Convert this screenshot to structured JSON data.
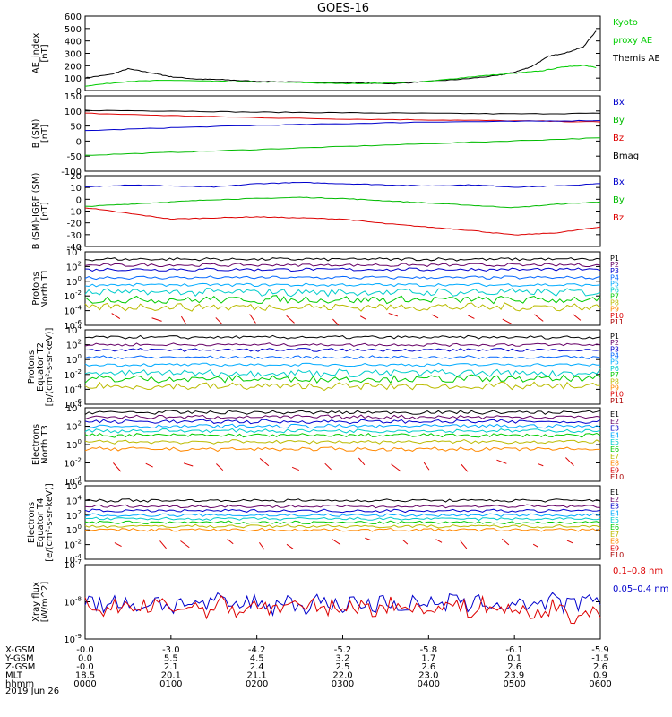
{
  "title": "GOES-16",
  "date_label": "2019 Jun 26",
  "footer": {
    "row_labels": [
      "X-GSM",
      "Y-GSM",
      "Z-GSM",
      "MLT",
      "hhmm"
    ],
    "columns": [
      [
        "-0.0",
        "0.0",
        "-0.0",
        "18.5",
        "0000"
      ],
      [
        "-3.0",
        "5.5",
        "2.1",
        "20.1",
        "0100"
      ],
      [
        "-4.2",
        "4.5",
        "2.4",
        "21.1",
        "0200"
      ],
      [
        "-5.2",
        "3.2",
        "2.5",
        "22.0",
        "0300"
      ],
      [
        "-5.8",
        "1.7",
        "2.6",
        "23.0",
        "0400"
      ],
      [
        "-6.1",
        "0.1",
        "2.6",
        "23.9",
        "0500"
      ],
      [
        "-5.9",
        "-1.5",
        "2.6",
        "0.9",
        "0600"
      ]
    ]
  },
  "panels": [
    {
      "ylabel": [
        "AE_index",
        "[nT]"
      ],
      "scale": "linear",
      "ticks": [
        "600",
        "500",
        "400",
        "300",
        "200",
        "100",
        "0"
      ],
      "legend": [
        {
          "text": "Kyoto",
          "color": "#00cc00"
        },
        {
          "text": "proxy AE",
          "color": "#00cc00"
        },
        {
          "text": "Themis AE",
          "color": "#000000"
        }
      ]
    },
    {
      "ylabel": [
        "B (SM)",
        "[nT]"
      ],
      "scale": "linear",
      "ticks": [
        "150",
        "100",
        "50",
        "0",
        "-50",
        "-100"
      ],
      "legend": [
        {
          "text": "Bx",
          "color": "#0000cc"
        },
        {
          "text": "By",
          "color": "#00bb00"
        },
        {
          "text": "Bz",
          "color": "#dd0000"
        },
        {
          "text": "Bmag",
          "color": "#000000"
        }
      ]
    },
    {
      "ylabel": [
        "B (SM)-IGRF (SM)",
        "[nT]"
      ],
      "scale": "linear",
      "ticks": [
        "20",
        "10",
        "0",
        "-10",
        "-20",
        "-30",
        "-40"
      ],
      "legend": [
        {
          "text": "Bx",
          "color": "#0000cc"
        },
        {
          "text": "By",
          "color": "#00bb00"
        },
        {
          "text": "Bz",
          "color": "#dd0000"
        }
      ]
    },
    {
      "ylabel": [
        "Protons",
        "North T1"
      ],
      "scale": "log",
      "ticks": [
        "4",
        "2",
        "0",
        "-2",
        "-4",
        "-6"
      ],
      "legend": [
        {
          "text": "P1",
          "color": "#000000"
        },
        {
          "text": "P2",
          "color": "#660066"
        },
        {
          "text": "P3",
          "color": "#0000cc"
        },
        {
          "text": "P4",
          "color": "#0066ff"
        },
        {
          "text": "P5",
          "color": "#00aaff"
        },
        {
          "text": "P6",
          "color": "#00cccc"
        },
        {
          "text": "P7",
          "color": "#00cc00"
        },
        {
          "text": "P8",
          "color": "#bbbb00"
        },
        {
          "text": "P9",
          "color": "#ff8800"
        },
        {
          "text": "P10",
          "color": "#dd0000"
        },
        {
          "text": "P11",
          "color": "#aa0000"
        }
      ]
    },
    {
      "ylabel": [
        "Protons",
        "Equator T2",
        "[p/(cm²-s-sr-keV)]"
      ],
      "scale": "log",
      "ticks": [
        "4",
        "2",
        "0",
        "-2",
        "-4",
        "-6"
      ],
      "legend": [
        {
          "text": "P1",
          "color": "#000000"
        },
        {
          "text": "P2",
          "color": "#660066"
        },
        {
          "text": "P3",
          "color": "#0000cc"
        },
        {
          "text": "P4",
          "color": "#0066ff"
        },
        {
          "text": "P5",
          "color": "#00aaff"
        },
        {
          "text": "P6",
          "color": "#00cccc"
        },
        {
          "text": "P7",
          "color": "#00cc00"
        },
        {
          "text": "P8",
          "color": "#bbbb00"
        },
        {
          "text": "P9",
          "color": "#ff8800"
        },
        {
          "text": "P10",
          "color": "#dd0000"
        },
        {
          "text": "P11",
          "color": "#aa0000"
        }
      ]
    },
    {
      "ylabel": [
        "Electrons",
        "North T3"
      ],
      "scale": "log",
      "ticks": [
        "4",
        "2",
        "0",
        "-2",
        "-4"
      ],
      "legend": [
        {
          "text": "E1",
          "color": "#000000"
        },
        {
          "text": "E2",
          "color": "#660066"
        },
        {
          "text": "E3",
          "color": "#0000cc"
        },
        {
          "text": "E4",
          "color": "#00aaff"
        },
        {
          "text": "E5",
          "color": "#00cccc"
        },
        {
          "text": "E6",
          "color": "#00cc00"
        },
        {
          "text": "E7",
          "color": "#bbbb00"
        },
        {
          "text": "E8",
          "color": "#ff8800"
        },
        {
          "text": "E9",
          "color": "#dd0000"
        },
        {
          "text": "E10",
          "color": "#aa0000"
        }
      ]
    },
    {
      "ylabel": [
        "Electrons",
        "Equator T4",
        "[e/(cm²-s-sr-keV)]"
      ],
      "scale": "log",
      "ticks": [
        "6",
        "4",
        "2",
        "0",
        "-2",
        "-4"
      ],
      "legend": [
        {
          "text": "E1",
          "color": "#000000"
        },
        {
          "text": "E2",
          "color": "#660066"
        },
        {
          "text": "E3",
          "color": "#0000cc"
        },
        {
          "text": "E4",
          "color": "#00aaff"
        },
        {
          "text": "E5",
          "color": "#00cccc"
        },
        {
          "text": "E6",
          "color": "#00cc00"
        },
        {
          "text": "E7",
          "color": "#bbbb00"
        },
        {
          "text": "E8",
          "color": "#ff8800"
        },
        {
          "text": "E9",
          "color": "#dd0000"
        },
        {
          "text": "E10",
          "color": "#aa0000"
        }
      ]
    },
    {
      "ylabel": [
        "Xray flux",
        "[W/m^2]"
      ],
      "scale": "log",
      "ticks": [
        "-7",
        "-8",
        "-9"
      ],
      "legend": [
        {
          "text": "0.1–0.8 nm",
          "color": "#dd0000"
        },
        {
          "text": "0.05–0.4 nm",
          "color": "#0000cc"
        }
      ]
    }
  ],
  "chart_data": {
    "type": "line",
    "title": "GOES-16",
    "x_unit": "hhmm",
    "x_ticks": [
      "0000",
      "0100",
      "0200",
      "0300",
      "0400",
      "0500",
      "0600"
    ],
    "xlim": [
      0,
      6
    ],
    "panels": [
      {
        "name": "AE_index",
        "ylim": [
          0,
          650
        ],
        "series": [
          {
            "name": "Themis AE",
            "color": "#000000",
            "x": [
              0,
              0.3,
              0.5,
              0.8,
              1.0,
              1.3,
              1.6,
              2.0,
              2.4,
              2.8,
              3.2,
              3.6,
              4.0,
              4.4,
              4.8,
              5.0,
              5.2,
              5.4,
              5.6,
              5.8,
              5.95
            ],
            "y": [
              110,
              140,
              190,
              150,
              120,
              100,
              95,
              80,
              75,
              70,
              65,
              60,
              80,
              100,
              130,
              160,
              210,
              300,
              330,
              380,
              520
            ]
          },
          {
            "name": "Kyoto proxy AE",
            "color": "#00cc00",
            "x": [
              0,
              0.5,
              1.0,
              1.5,
              2.0,
              2.5,
              3.0,
              3.5,
              4.0,
              4.5,
              5.0,
              5.3,
              5.6,
              5.8,
              5.95
            ],
            "y": [
              40,
              80,
              90,
              80,
              75,
              70,
              60,
              65,
              80,
              120,
              150,
              170,
              210,
              220,
              200
            ]
          }
        ]
      },
      {
        "name": "B (SM)",
        "ylim": [
          -110,
          150
        ],
        "series": [
          {
            "name": "Bmag",
            "color": "#000000",
            "x": [
              0,
              1,
              2,
              3,
              4,
              5,
              6
            ],
            "y": [
              100,
              98,
              94,
              92,
              90,
              88,
              90
            ]
          },
          {
            "name": "Bz",
            "color": "#dd0000",
            "x": [
              0,
              1,
              2,
              3,
              4,
              5,
              6
            ],
            "y": [
              90,
              82,
              75,
              70,
              67,
              64,
              60
            ]
          },
          {
            "name": "Bx",
            "color": "#0000cc",
            "x": [
              0,
              1,
              2,
              3,
              4,
              5,
              6
            ],
            "y": [
              30,
              40,
              48,
              54,
              60,
              62,
              65
            ]
          },
          {
            "name": "By",
            "color": "#00bb00",
            "x": [
              0,
              1,
              2,
              3,
              4,
              5,
              6
            ],
            "y": [
              -55,
              -45,
              -35,
              -25,
              -15,
              -5,
              5
            ]
          }
        ]
      },
      {
        "name": "B (SM)-IGRF (SM)",
        "ylim": [
          -42,
          20
        ],
        "series": [
          {
            "name": "Bx",
            "color": "#0000cc",
            "x": [
              0,
              0.5,
              1,
              1.5,
              2,
              2.5,
              3,
              3.5,
              4,
              4.5,
              5,
              5.5,
              6
            ],
            "y": [
              10,
              12,
              11,
              10,
              13,
              14,
              13,
              12,
              11,
              12,
              10,
              11,
              13
            ]
          },
          {
            "name": "By",
            "color": "#00bb00",
            "x": [
              0,
              0.5,
              1,
              1.5,
              2,
              2.5,
              3,
              3.5,
              4,
              4.5,
              5,
              5.5,
              6
            ],
            "y": [
              -7,
              -5,
              -3,
              -1,
              0,
              1,
              0,
              -2,
              -4,
              -6,
              -8,
              -5,
              -3
            ]
          },
          {
            "name": "Bz",
            "color": "#dd0000",
            "x": [
              0,
              0.5,
              1,
              1.5,
              2,
              2.5,
              3,
              3.5,
              4,
              4.5,
              5,
              5.5,
              6
            ],
            "y": [
              -8,
              -13,
              -18,
              -17,
              -16,
              -17,
              -18,
              -22,
              -25,
              -28,
              -32,
              -30,
              -25
            ]
          }
        ]
      },
      {
        "name": "Protons North T1",
        "log": true,
        "ylim_exp": [
          -6,
          4
        ],
        "series": [
          {
            "name": "P1",
            "color": "#000000",
            "y": 3.0
          },
          {
            "name": "P2",
            "color": "#660066",
            "y": 2.2
          },
          {
            "name": "P3",
            "color": "#0000cc",
            "y": 1.6
          },
          {
            "name": "P4",
            "color": "#0066ff",
            "y": 0.5
          },
          {
            "name": "P5",
            "color": "#00aaff",
            "y": -0.5
          },
          {
            "name": "P6",
            "color": "#00cccc",
            "y": -1.5
          },
          {
            "name": "P7",
            "color": "#00cc00",
            "y": -2.5
          },
          {
            "name": "P8",
            "color": "#bbbb00",
            "y": -3.5
          },
          {
            "name": "P10",
            "color": "#dd0000",
            "y": -4.8
          }
        ]
      },
      {
        "name": "Protons Equator T2",
        "log": true,
        "ylim_exp": [
          -6,
          4
        ],
        "series": [
          {
            "name": "P1",
            "color": "#000000",
            "y": 3.0
          },
          {
            "name": "P2",
            "color": "#660066",
            "y": 2.0
          },
          {
            "name": "P3",
            "color": "#0000cc",
            "y": 1.3
          },
          {
            "name": "P4",
            "color": "#0066ff",
            "y": 0.3
          },
          {
            "name": "P5",
            "color": "#00aaff",
            "y": -0.7
          },
          {
            "name": "P6",
            "color": "#00cccc",
            "y": -1.8
          },
          {
            "name": "P7",
            "color": "#00cc00",
            "y": -2.6
          },
          {
            "name": "P8",
            "color": "#bbbb00",
            "y": -3.6
          }
        ]
      },
      {
        "name": "Electrons North T3",
        "log": true,
        "ylim_exp": [
          -4,
          4
        ],
        "series": [
          {
            "name": "E1",
            "color": "#000000",
            "y": 3.5
          },
          {
            "name": "E2",
            "color": "#660066",
            "y": 3.0
          },
          {
            "name": "E3",
            "color": "#0000cc",
            "y": 2.5
          },
          {
            "name": "E4",
            "color": "#00aaff",
            "y": 2.0
          },
          {
            "name": "E5",
            "color": "#00cccc",
            "y": 1.5
          },
          {
            "name": "E6",
            "color": "#00cc00",
            "y": 1.0
          },
          {
            "name": "E7",
            "color": "#bbbb00",
            "y": 0.3
          },
          {
            "name": "E8",
            "color": "#ff8800",
            "y": -0.5
          },
          {
            "name": "E9",
            "color": "#dd0000",
            "y": -2.0
          }
        ]
      },
      {
        "name": "Electrons Equator T4",
        "log": true,
        "ylim_exp": [
          -4,
          6
        ],
        "series": [
          {
            "name": "E1",
            "color": "#000000",
            "y": 4.0
          },
          {
            "name": "E2",
            "color": "#660066",
            "y": 3.2
          },
          {
            "name": "E3",
            "color": "#0000cc",
            "y": 2.6
          },
          {
            "name": "E4",
            "color": "#00aaff",
            "y": 2.0
          },
          {
            "name": "E5",
            "color": "#00cccc",
            "y": 1.5
          },
          {
            "name": "E6",
            "color": "#00cc00",
            "y": 1.0
          },
          {
            "name": "E7",
            "color": "#bbbb00",
            "y": 0.5
          },
          {
            "name": "E8",
            "color": "#ff8800",
            "y": 0.0
          },
          {
            "name": "E9",
            "color": "#dd0000",
            "y": -1.6
          }
        ]
      },
      {
        "name": "Xray flux",
        "log": true,
        "ylim_exp": [
          -9.1,
          -7
        ],
        "series": [
          {
            "name": "0.05–0.4 nm",
            "color": "#0000cc",
            "y": -8.1
          },
          {
            "name": "0.1–0.8 nm",
            "color": "#dd0000",
            "y": -8.2
          }
        ]
      }
    ]
  }
}
